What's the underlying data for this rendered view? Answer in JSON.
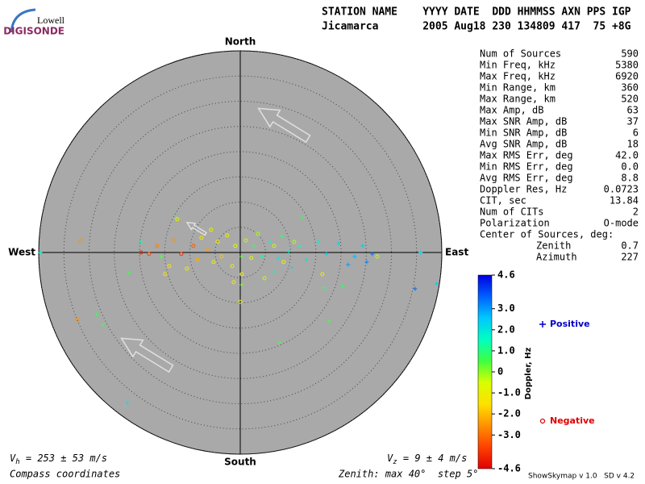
{
  "logo": {
    "top": "Lowell",
    "bottom": "DIGISONDE"
  },
  "header": {
    "line1": "STATION NAME    YYYY DATE  DDD HHMMSS AXN PPS IGP",
    "line2": "Jicamarca       2005 Aug18 230 134809 417  75 +8G"
  },
  "stats": {
    "rows": [
      [
        "Num of Sources",
        "590"
      ],
      [
        "Min Freq, kHz",
        "5380"
      ],
      [
        "Max Freq, kHz",
        "6920"
      ],
      [
        "Min Range, km",
        "360"
      ],
      [
        "Max Range, km",
        "520"
      ],
      [
        "Max Amp, dB",
        "63"
      ],
      [
        "Max SNR Amp, dB",
        "37"
      ],
      [
        "Min SNR Amp, dB",
        "6"
      ],
      [
        "Avg SNR Amp, dB",
        "18"
      ],
      [
        "Max RMS Err, deg",
        "42.0"
      ],
      [
        "Min RMS Err, deg",
        "0.0"
      ],
      [
        "Avg RMS Err, deg",
        "8.8"
      ],
      [
        "Doppler Res, Hz",
        "0.0723"
      ],
      [
        "CIT, sec",
        "13.84"
      ],
      [
        "Num of CITs",
        "2"
      ],
      [
        "Polarization",
        "O-mode"
      ],
      [
        "Center of Sources, deg:"
      ],
      [
        "Zenith",
        "0.7"
      ],
      [
        "Azimuth",
        "227"
      ]
    ]
  },
  "footer": {
    "vh": {
      "symbol": "V",
      "sub": "h",
      "text": " = 253 ± 53 m/s"
    },
    "vz": {
      "symbol": "V",
      "sub": "z",
      "text": " = 9 ± 4 m/s"
    },
    "coords": "Compass coordinates",
    "zenith": "Zenith: max 40°  step 5°",
    "version": "ShowSkymap v 1.0   SD v 4.2"
  },
  "chart_data": {
    "type": "skymap",
    "north": "North",
    "south": "South",
    "west": "West",
    "east": "East",
    "rlim": [
      0,
      40
    ],
    "rticks": [
      5,
      10,
      15,
      20,
      25,
      30,
      35,
      40
    ],
    "colorbar_label": "Doppler, Hz",
    "clim": [
      -4.6,
      4.6
    ],
    "cticks": [
      4.6,
      {
        "value": 3,
        "label": "3.0"
      },
      {
        "value": 2,
        "label": "2.0"
      },
      {
        "value": 1,
        "label": "1.0"
      },
      0,
      {
        "value": -1,
        "label": "-1.0"
      },
      {
        "value": -2,
        "label": "-2.0"
      },
      {
        "value": -3,
        "label": "-3.0"
      },
      -4.6
    ],
    "colormap": [
      "#e00000",
      "#ff4000",
      "#ff9000",
      "#ffe000",
      "#d8ff00",
      "#40ff40",
      "#00ffc0",
      "#00c8ff",
      "#0060ff",
      "#0000e0"
    ],
    "series": [
      {
        "name": "Positive",
        "color": "#0000c8",
        "marker": "+",
        "x": [
          -39.7,
          -22.1,
          -19.7,
          -15.7,
          -12.8,
          0.3,
          2.7,
          4.3,
          5.9,
          7.5,
          8.3,
          9.6,
          10.2,
          11.8,
          12.3,
          13.1,
          15.5,
          17.1,
          19.5,
          20.3,
          21.4,
          22.7,
          24.3,
          25.1,
          26.2,
          35.8,
          34.7,
          39.0,
          -28.5,
          -27.2,
          -22.4,
          7.8,
          17.6,
          6.7,
          16.8,
          0.3
        ],
        "y": [
          0,
          -4.0,
          2.1,
          -0.8,
          6.9,
          -0.8,
          1.3,
          -0.8,
          2.1,
          -1.1,
          3.2,
          0.2,
          -3.0,
          1.3,
          6.9,
          -1.4,
          2.1,
          -0.3,
          1.8,
          -6.7,
          -2.4,
          -0.8,
          1.3,
          -1.9,
          -0.3,
          0,
          -7.2,
          -6.2,
          -12.3,
          -14.4,
          -29.9,
          -17.9,
          -13.6,
          -3.8,
          -7.0,
          -6.4
        ],
        "doppler": [
          1.8,
          0.6,
          1.5,
          0.4,
          0.5,
          0.3,
          0.8,
          1.3,
          1.6,
          1.9,
          0.9,
          1.7,
          2.1,
          1.4,
          0.7,
          2.0,
          1.8,
          2.3,
          2.2,
          0.8,
          3.0,
          2.7,
          2.4,
          3.2,
          3.4,
          2.2,
          3.5,
          2.4,
          0.7,
          0.6,
          2.0,
          0.5,
          0.6,
          1.5,
          0.9,
          0.2
        ]
      },
      {
        "name": "Negative",
        "color": "#e00000",
        "marker": "o",
        "x": [
          -31.7,
          -18.1,
          -16.5,
          -14.1,
          -13.3,
          -11.7,
          -10.6,
          -9.3,
          -8.5,
          -7.7,
          -6.4,
          -5.8,
          -5.3,
          -4.5,
          -3.7,
          -2.6,
          -1.6,
          -1.0,
          0.3,
          1.1,
          2.2,
          3.5,
          4.8,
          6.7,
          8.6,
          10.7,
          16.3,
          27.2,
          -32.3,
          -12.5,
          -14.9,
          0,
          -1.3,
          -19.7
        ],
        "y": [
          2.4,
          -0.3,
          1.3,
          -2.7,
          2.4,
          -0.3,
          -3.2,
          1.3,
          -1.4,
          2.9,
          0.5,
          4.5,
          -1.9,
          2.1,
          -0.8,
          3.4,
          -2.7,
          1.3,
          -4.3,
          2.4,
          -1.1,
          3.7,
          -5.1,
          1.3,
          -1.9,
          2.1,
          -4.3,
          -0.8,
          -13.4,
          6.6,
          -4.3,
          -9.8,
          -5.9,
          0
        ],
        "doppler": [
          -2.5,
          -3.5,
          -2.8,
          -1.2,
          -2.5,
          -3.8,
          -1.0,
          -3.3,
          -2.2,
          -1.2,
          -2.4,
          -1.0,
          -0.9,
          -1.3,
          -1.9,
          -0.8,
          -1.1,
          -0.7,
          -1.0,
          -0.3,
          -0.6,
          -0.2,
          -0.3,
          -0.4,
          -0.8,
          -0.2,
          -0.9,
          -0.3,
          -2.5,
          -1.0,
          -1.4,
          -1.0,
          -1.2,
          -4.0
        ]
      }
    ]
  }
}
